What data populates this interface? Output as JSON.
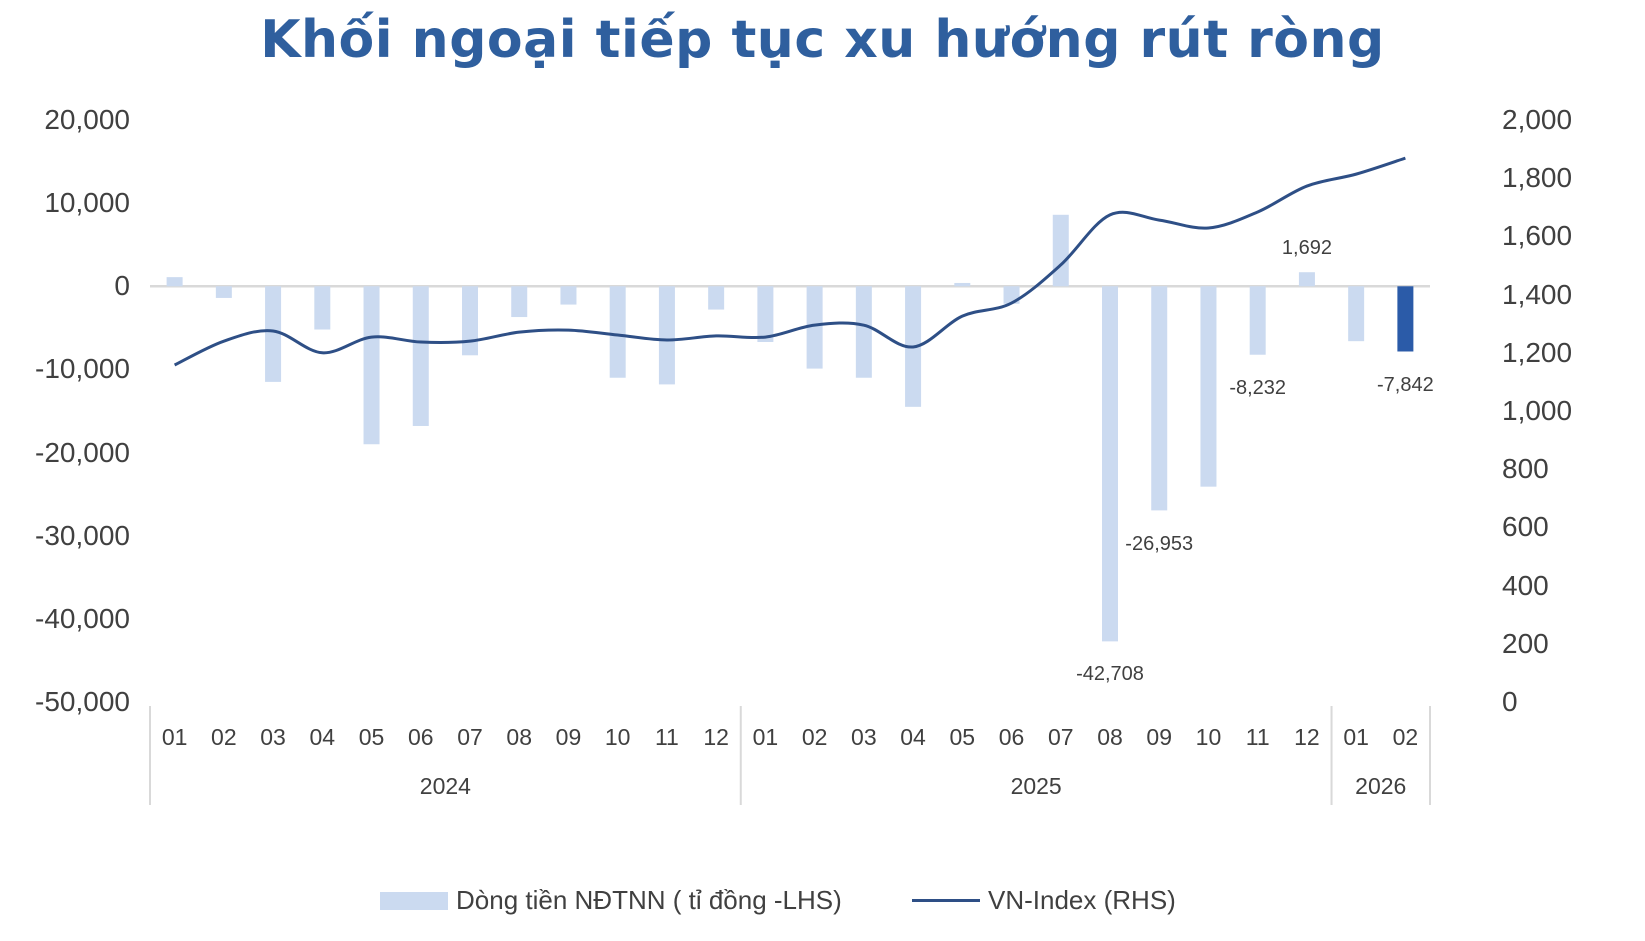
{
  "title": "Khối ngoại tiếp tục xu hướng rút ròng",
  "axes": {
    "left_ticks": [
      "20,000",
      "10,000",
      "0",
      "-10,000",
      "-20,000",
      "-30,000",
      "-40,000",
      "-50,000"
    ],
    "right_ticks": [
      "2,000",
      "1,800",
      "1,600",
      "1,400",
      "1,200",
      "1,000",
      "800",
      "600",
      "400",
      "200",
      "0"
    ]
  },
  "legend": {
    "bar_label": "Dòng tiền NĐTNN ( tỉ đồng -LHS)",
    "line_label": "VN-Index (RHS)"
  },
  "colors": {
    "bar": "#cbdaf0",
    "bar_highlight": "#2b5ba8",
    "line": "#2e4f86",
    "title": "#2f5f9e",
    "axis": "#d9d9d9"
  },
  "chart_data": {
    "type": "bar",
    "title": "Khối ngoại tiếp tục xu hướng rút ròng",
    "xlabel": "",
    "ylabel_left": "Dòng tiền NĐTNN (tỉ đồng)",
    "ylabel_right": "VN-Index",
    "ylim_left": [
      -50000,
      20000
    ],
    "ylim_right": [
      0,
      2000
    ],
    "grid": false,
    "legend_position": "bottom",
    "categories": [
      "01",
      "02",
      "03",
      "04",
      "05",
      "06",
      "07",
      "08",
      "09",
      "10",
      "11",
      "12",
      "01",
      "02",
      "03",
      "04",
      "05",
      "06",
      "07",
      "08",
      "09",
      "10",
      "11",
      "12",
      "01",
      "02"
    ],
    "year_groups": [
      {
        "label": "2024",
        "start": 0,
        "end": 11
      },
      {
        "label": "2025",
        "start": 12,
        "end": 23
      },
      {
        "label": "2026",
        "start": 24,
        "end": 25
      }
    ],
    "series": [
      {
        "name": "Dòng tiền NĐTNN ( tỉ đồng -LHS)",
        "type": "bar",
        "axis": "left",
        "values": [
          1100,
          -1400,
          -11500,
          -5200,
          -19000,
          -16800,
          -8300,
          -3700,
          -2200,
          -11000,
          -11800,
          -2800,
          -6700,
          -9900,
          -11000,
          -14500,
          400,
          -2100,
          8600,
          -42708,
          -26953,
          -24100,
          -8232,
          1692,
          -6600,
          -7842
        ]
      },
      {
        "name": "VN-Index (RHS)",
        "type": "line",
        "axis": "right",
        "values": [
          1158,
          1240,
          1275,
          1200,
          1254,
          1237,
          1240,
          1271,
          1278,
          1261,
          1244,
          1258,
          1254,
          1295,
          1295,
          1220,
          1326,
          1371,
          1502,
          1674,
          1656,
          1629,
          1684,
          1773,
          1814,
          1869
        ]
      }
    ],
    "data_labels": [
      {
        "index": 19,
        "text": "-42,708"
      },
      {
        "index": 20,
        "text": "-26,953"
      },
      {
        "index": 22,
        "text": "-8,232"
      },
      {
        "index": 23,
        "text": "1,692"
      },
      {
        "index": 25,
        "text": "-7,842"
      }
    ],
    "highlight_index": 25
  }
}
